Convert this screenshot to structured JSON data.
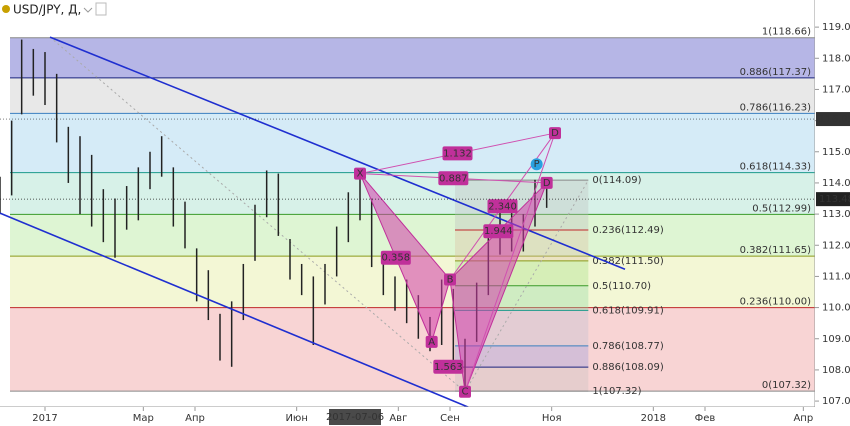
{
  "chart_data": {
    "type": "ohlc",
    "title": "USD/JPY, Д,",
    "x": [
      -27,
      -20,
      -14,
      -7,
      0,
      7,
      14,
      21,
      28,
      35,
      42,
      49,
      56,
      63,
      70,
      77,
      84,
      91,
      98,
      105,
      112,
      119,
      126,
      133,
      140,
      147,
      154,
      161,
      168,
      175,
      182,
      189,
      196,
      203,
      210,
      217,
      224,
      231,
      238,
      245,
      252,
      259,
      266,
      273,
      280,
      287,
      294,
      301
    ],
    "high": [
      114.2,
      116.0,
      118.6,
      118.3,
      118.2,
      117.5,
      115.8,
      115.5,
      114.9,
      113.8,
      113.5,
      113.9,
      114.5,
      115.0,
      115.5,
      114.5,
      113.4,
      111.9,
      111.2,
      109.8,
      110.2,
      111.4,
      113.3,
      114.4,
      114.3,
      112.2,
      111.4,
      111.0,
      111.4,
      112.6,
      113.7,
      114.4,
      113.5,
      111.6,
      111.0,
      110.9,
      110.4,
      109.7,
      110.9,
      110.6,
      109.0,
      110.8,
      112.6,
      113.2,
      113.4,
      113.0,
      114.1,
      114.0
    ],
    "low": [
      113.0,
      113.6,
      116.2,
      116.8,
      116.5,
      115.3,
      114.0,
      113.0,
      112.6,
      112.1,
      111.6,
      112.5,
      112.8,
      113.8,
      114.2,
      112.6,
      111.9,
      110.2,
      109.6,
      108.3,
      108.1,
      109.6,
      111.5,
      112.9,
      112.3,
      110.9,
      110.4,
      108.8,
      110.1,
      111.0,
      112.1,
      112.8,
      111.3,
      110.4,
      109.9,
      109.5,
      109.0,
      108.6,
      108.8,
      108.3,
      107.3,
      108.9,
      110.4,
      111.7,
      111.8,
      111.8,
      112.6,
      113.2
    ],
    "color": "#222222",
    "xlim": [
      -27,
      462
    ],
    "ylim": [
      106.81,
      119.87
    ],
    "xticks": [
      {
        "value": 0,
        "label": "2017"
      },
      {
        "value": 59,
        "label": "Мар"
      },
      {
        "value": 90,
        "label": "Апр"
      },
      {
        "value": 151,
        "label": "Июн"
      },
      {
        "value": 212,
        "label": "Авг"
      },
      {
        "value": 243,
        "label": "Сен"
      },
      {
        "value": 304,
        "label": "Ноя"
      },
      {
        "value": 365,
        "label": "2018"
      },
      {
        "value": 396,
        "label": "Фев"
      },
      {
        "value": 455,
        "label": "Апр"
      }
    ],
    "crosshair_x": {
      "value": 186,
      "label": "2017-07-06"
    },
    "yticks": [
      {
        "value": 107,
        "label": "107.00"
      },
      {
        "value": 108,
        "label": "108.00"
      },
      {
        "value": 109,
        "label": "109.00"
      },
      {
        "value": 110,
        "label": "110.00"
      },
      {
        "value": 111,
        "label": "111.00"
      },
      {
        "value": 112,
        "label": "112.00"
      },
      {
        "value": 113,
        "label": "113.00"
      },
      {
        "value": 114,
        "label": "114.00"
      },
      {
        "value": 115,
        "label": "115.00"
      },
      {
        "value": 116,
        "label": "116.00"
      },
      {
        "value": 117,
        "label": "117.00"
      },
      {
        "value": 118,
        "label": "118.00"
      },
      {
        "value": 119,
        "label": "119.00"
      }
    ],
    "price_marks": [
      {
        "value": 116.05,
        "color": "#333333"
      },
      {
        "value": 113.48,
        "color": "#222222"
      }
    ],
    "fib_main": {
      "xstart": -21,
      "levels": [
        {
          "value": 118.66,
          "label": "1(118.66)",
          "color": "#888888",
          "fill": "rgba(110,110,205,0.5)"
        },
        {
          "value": 117.37,
          "label": "0.886(117.37)",
          "color": "#1a237e",
          "fill": "rgba(190,190,190,0.35)"
        },
        {
          "value": 116.23,
          "label": "0.786(116.23)",
          "color": "#3a7fbf",
          "fill": "rgba(150,205,235,0.4)"
        },
        {
          "value": 114.33,
          "label": "0.618(114.33)",
          "color": "#1a9a8a",
          "fill": "rgba(140,215,190,0.35)"
        },
        {
          "value": 112.99,
          "label": "0.5(112.99)",
          "color": "#3a9a2a",
          "fill": "rgba(160,225,130,0.35)"
        },
        {
          "value": 111.65,
          "label": "0.382(111.65)",
          "color": "#8a9a1a",
          "fill": "rgba(225,235,150,0.4)"
        },
        {
          "value": 110.0,
          "label": "0.236(110.00)",
          "color": "#c0282b",
          "fill": "rgba(240,160,160,0.45)"
        },
        {
          "value": 107.32,
          "label": "0(107.32)",
          "color": "#888888",
          "fill": "rgba(0,0,0,0)"
        }
      ]
    },
    "fib_small": {
      "xlim": [
        246,
        326
      ],
      "levels": [
        {
          "value": 114.09,
          "label": "0(114.09)",
          "color": "#888888",
          "fill": "rgba(190,190,190,0.35)"
        },
        {
          "value": 112.49,
          "label": "0.236(112.49)",
          "color": "#c0282b",
          "fill": "rgba(220,190,160,0.35)"
        },
        {
          "value": 111.5,
          "label": "0.382(111.50)",
          "color": "#8a9a1a",
          "fill": "rgba(160,220,130,0.35)"
        },
        {
          "value": 110.7,
          "label": "0.5(110.70)",
          "color": "#3a9a2a",
          "fill": "rgba(140,215,160,0.35)"
        },
        {
          "value": 109.91,
          "label": "0.618(109.91)",
          "color": "#1a9a8a",
          "fill": "rgba(190,190,210,0.35)"
        },
        {
          "value": 108.77,
          "label": "0.786(108.77)",
          "color": "#3a7fbf",
          "fill": "rgba(160,160,220,0.4)"
        },
        {
          "value": 108.09,
          "label": "0.886(108.09)",
          "color": "#1a237e",
          "fill": "rgba(190,190,190,0.3)"
        },
        {
          "value": 107.32,
          "label": "1(107.32)",
          "color": "#888888",
          "fill": "rgba(0,0,0,0)"
        }
      ]
    },
    "channel": [
      {
        "x": [
          3,
          348
        ],
        "y": [
          118.68,
          111.23
        ]
      },
      {
        "x": [
          -27,
          261
        ],
        "y": [
          113.03,
          106.65
        ]
      }
    ],
    "pattern_points": [
      {
        "label": "X",
        "x": 189,
        "y": 114.3
      },
      {
        "label": "A",
        "x": 232,
        "y": 108.9
      },
      {
        "label": "B",
        "x": 243,
        "y": 110.9
      },
      {
        "label": "C",
        "x": 252,
        "y": 107.3
      },
      {
        "label": "D",
        "x": 301,
        "y": 114.0
      },
      {
        "label": "D",
        "x": 306,
        "y": 115.6
      },
      {
        "label": "P",
        "x": 295,
        "y": 114.6
      }
    ],
    "ratios": [
      0.358,
      1.563,
      0.887,
      1.132,
      1.944,
      2.34
    ],
    "ratio_labels": [
      "0.358",
      "1.563",
      "0.887",
      "1.132",
      "1.944",
      "2.340"
    ]
  }
}
